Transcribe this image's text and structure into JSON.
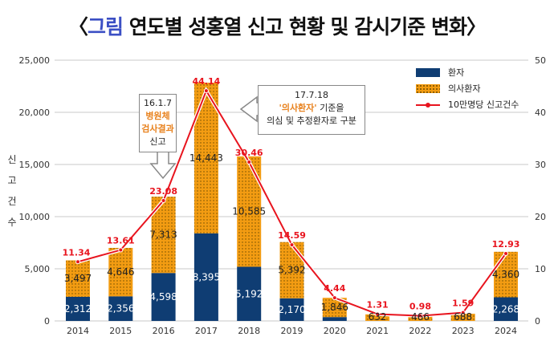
{
  "title": {
    "bracket_open": "〈",
    "accent": "그림",
    "rest": " 연도별 성홍열 신고 현황 및 감시기준 변화",
    "bracket_close": "〉"
  },
  "y_axis_label_chars": [
    "신",
    "고",
    "건",
    "수"
  ],
  "legend": {
    "items": [
      {
        "label": "환자",
        "swatch": "navy"
      },
      {
        "label": "의사환자",
        "swatch": "orange-dotted"
      },
      {
        "label": "10만명당 신고건수",
        "swatch": "red-line-dot"
      }
    ]
  },
  "notes": [
    {
      "id": "note-2016",
      "lines": [
        "16.1.7",
        "병원체",
        "검사결과",
        "신고"
      ],
      "highlight": [
        1,
        2
      ]
    },
    {
      "id": "note-2017",
      "date": "17.7.18",
      "highlight_text": "'의사환자'",
      "rest1": " 기준을",
      "line3": "의심 및 추정환자로 구분"
    }
  ],
  "colors": {
    "navy": "#0f3d73",
    "orange": "#f39c12",
    "red": "#e8141e",
    "grid": "#c8c8c8"
  },
  "chart_data": {
    "type": "bar",
    "stacked": true,
    "title": "연도별 성홍열 신고 현황 및 감시기준 변화",
    "categories": [
      "2014",
      "2015",
      "2016",
      "2017",
      "2018",
      "2019",
      "2020",
      "2021",
      "2022",
      "2023",
      "2024"
    ],
    "series": [
      {
        "name": "환자",
        "values": [
          2312,
          2356,
          4598,
          8395,
          5192,
          2170,
          370,
          0,
          0,
          0,
          2268
        ],
        "labels": [
          "2,312",
          "2,356",
          "4,598",
          "8,395",
          "5,192",
          "2,170",
          "",
          "",
          "",
          "",
          "2,268"
        ]
      },
      {
        "name": "의사환자",
        "values": [
          3497,
          4646,
          7313,
          14443,
          10585,
          5392,
          1846,
          632,
          466,
          688,
          4360
        ],
        "labels": [
          "3,497",
          "4,646",
          "7,313",
          "14,443",
          "10,585",
          "5,392",
          "1,846",
          "632",
          "466",
          "688",
          "4,360"
        ]
      }
    ],
    "line_series": {
      "name": "10만명당 신고건수",
      "axis": "right",
      "values": [
        11.34,
        13.61,
        23.08,
        44.14,
        30.46,
        14.59,
        4.44,
        1.31,
        0.98,
        1.59,
        12.93
      ],
      "labels": [
        "11.34",
        "13.61",
        "23.08",
        "44.14",
        "30.46",
        "14.59",
        "4.44",
        "1.31",
        "0.98",
        "1.59",
        "12.93"
      ]
    },
    "ylabel": "신고건수",
    "ylim": [
      0,
      25000
    ],
    "yticks": [
      "0",
      "5,000",
      "10,000",
      "15,000",
      "20,000",
      "25,000"
    ],
    "ylim_right": [
      0,
      50
    ],
    "yticks_right": [
      "0",
      "10",
      "20",
      "30",
      "40",
      "50"
    ],
    "grid": true,
    "legend": "top-right"
  }
}
